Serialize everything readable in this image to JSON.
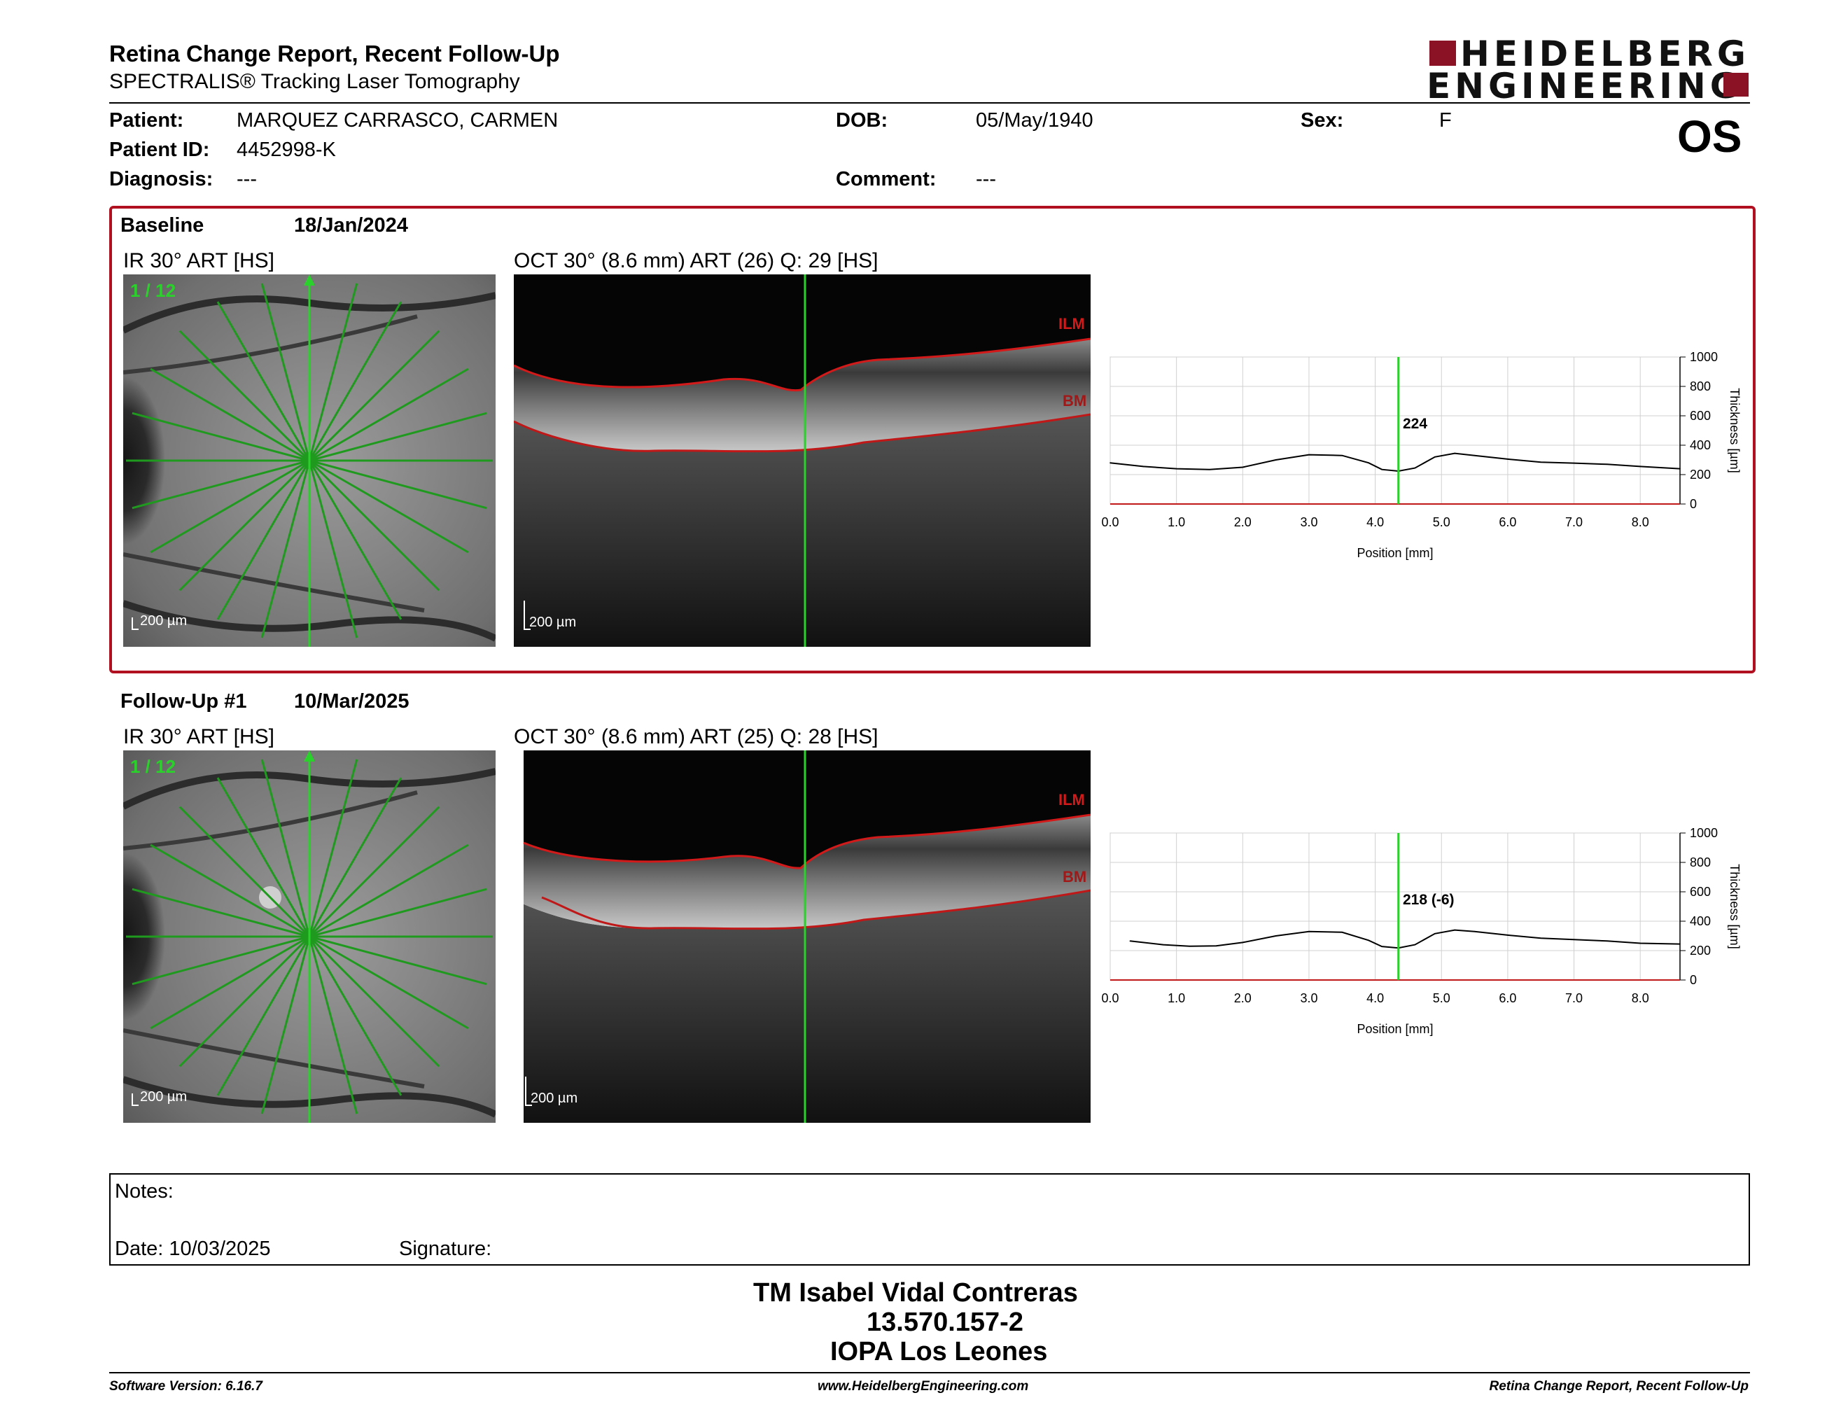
{
  "report": {
    "title": "Retina Change Report, Recent Follow-Up",
    "subtitle": "SPECTRALIS® Tracking Laser Tomography"
  },
  "logo": {
    "line1": "HEIDELBERG",
    "line2": "ENGINEERING",
    "brand_color": "#8a1224"
  },
  "patient": {
    "name_label": "Patient:",
    "name": "MARQUEZ CARRASCO, CARMEN",
    "id_label": "Patient ID:",
    "id": "4452998-K",
    "diagnosis_label": "Diagnosis:",
    "diagnosis": "---",
    "dob_label": "DOB:",
    "dob": "05/May/1940",
    "comment_label": "Comment:",
    "comment": "---",
    "sex_label": "Sex:",
    "sex": "F",
    "eye": "OS"
  },
  "exams": [
    {
      "label": "Baseline",
      "date": "18/Jan/2024",
      "ir_title": "IR 30° ART [HS]",
      "scan_index": "1 / 12",
      "ir_scale": "200 µm",
      "oct_title": "OCT 30° (8.6 mm) ART (26) Q: 29 [HS]",
      "oct_scale": "200 µm",
      "ilm_label": "ILM",
      "bm_label": "BM",
      "thickness_label": "224"
    },
    {
      "label": "Follow-Up #1",
      "date": "10/Mar/2025",
      "ir_title": "IR 30° ART [HS]",
      "scan_index": "1 / 12",
      "ir_scale": "200 µm",
      "oct_title": "OCT 30° (8.6 mm) ART (25) Q: 28 [HS]",
      "oct_scale": "200 µm",
      "ilm_label": "ILM",
      "bm_label": "BM",
      "thickness_label": "218 (-6)"
    }
  ],
  "chart_data": [
    {
      "type": "line",
      "xlabel": "Position [mm]",
      "ylabel": "Thickness [µm]",
      "xlim": [
        0,
        8.6
      ],
      "ylim": [
        0,
        1000
      ],
      "x_ticks": [
        "0.0",
        "1.0",
        "2.0",
        "3.0",
        "4.0",
        "5.0",
        "6.0",
        "7.0",
        "8.0"
      ],
      "y_ticks": [
        "0",
        "200",
        "400",
        "600",
        "800",
        "1000"
      ],
      "marker_x": 4.35,
      "marker_label": "224",
      "grid": true,
      "x": [
        0.0,
        0.5,
        1.0,
        1.5,
        2.0,
        2.5,
        3.0,
        3.5,
        3.9,
        4.1,
        4.35,
        4.6,
        4.9,
        5.2,
        5.5,
        6.0,
        6.5,
        7.0,
        7.5,
        8.0,
        8.6
      ],
      "values": [
        280,
        255,
        240,
        235,
        250,
        300,
        335,
        330,
        280,
        235,
        224,
        245,
        320,
        345,
        330,
        305,
        285,
        278,
        270,
        255,
        240
      ]
    },
    {
      "type": "line",
      "xlabel": "Position [mm]",
      "ylabel": "Thickness [µm]",
      "xlim": [
        0,
        8.6
      ],
      "ylim": [
        0,
        1000
      ],
      "x_ticks": [
        "0.0",
        "1.0",
        "2.0",
        "3.0",
        "4.0",
        "5.0",
        "6.0",
        "7.0",
        "8.0"
      ],
      "y_ticks": [
        "0",
        "200",
        "400",
        "600",
        "800",
        "1000"
      ],
      "marker_x": 4.35,
      "marker_label": "218 (-6)",
      "grid": true,
      "x": [
        0.3,
        0.8,
        1.2,
        1.6,
        2.0,
        2.5,
        3.0,
        3.5,
        3.9,
        4.1,
        4.35,
        4.6,
        4.9,
        5.2,
        5.5,
        6.0,
        6.5,
        7.0,
        7.5,
        8.0,
        8.6
      ],
      "values": [
        265,
        240,
        230,
        232,
        255,
        300,
        330,
        325,
        270,
        228,
        218,
        240,
        315,
        340,
        330,
        305,
        285,
        275,
        265,
        250,
        245
      ]
    }
  ],
  "notes": {
    "label": "Notes:",
    "date_label": "Date: 10/03/2025",
    "signature_label": "Signature:"
  },
  "signature_block": {
    "line1": "TM Isabel Vidal Contreras",
    "line2": "13.570.157-2",
    "line3": "IOPA Los Leones"
  },
  "footer": {
    "left": "Software Version: 6.16.7",
    "center": "www.HeidelbergEngineering.com",
    "right": "Retina Change Report, Recent Follow-Up"
  }
}
